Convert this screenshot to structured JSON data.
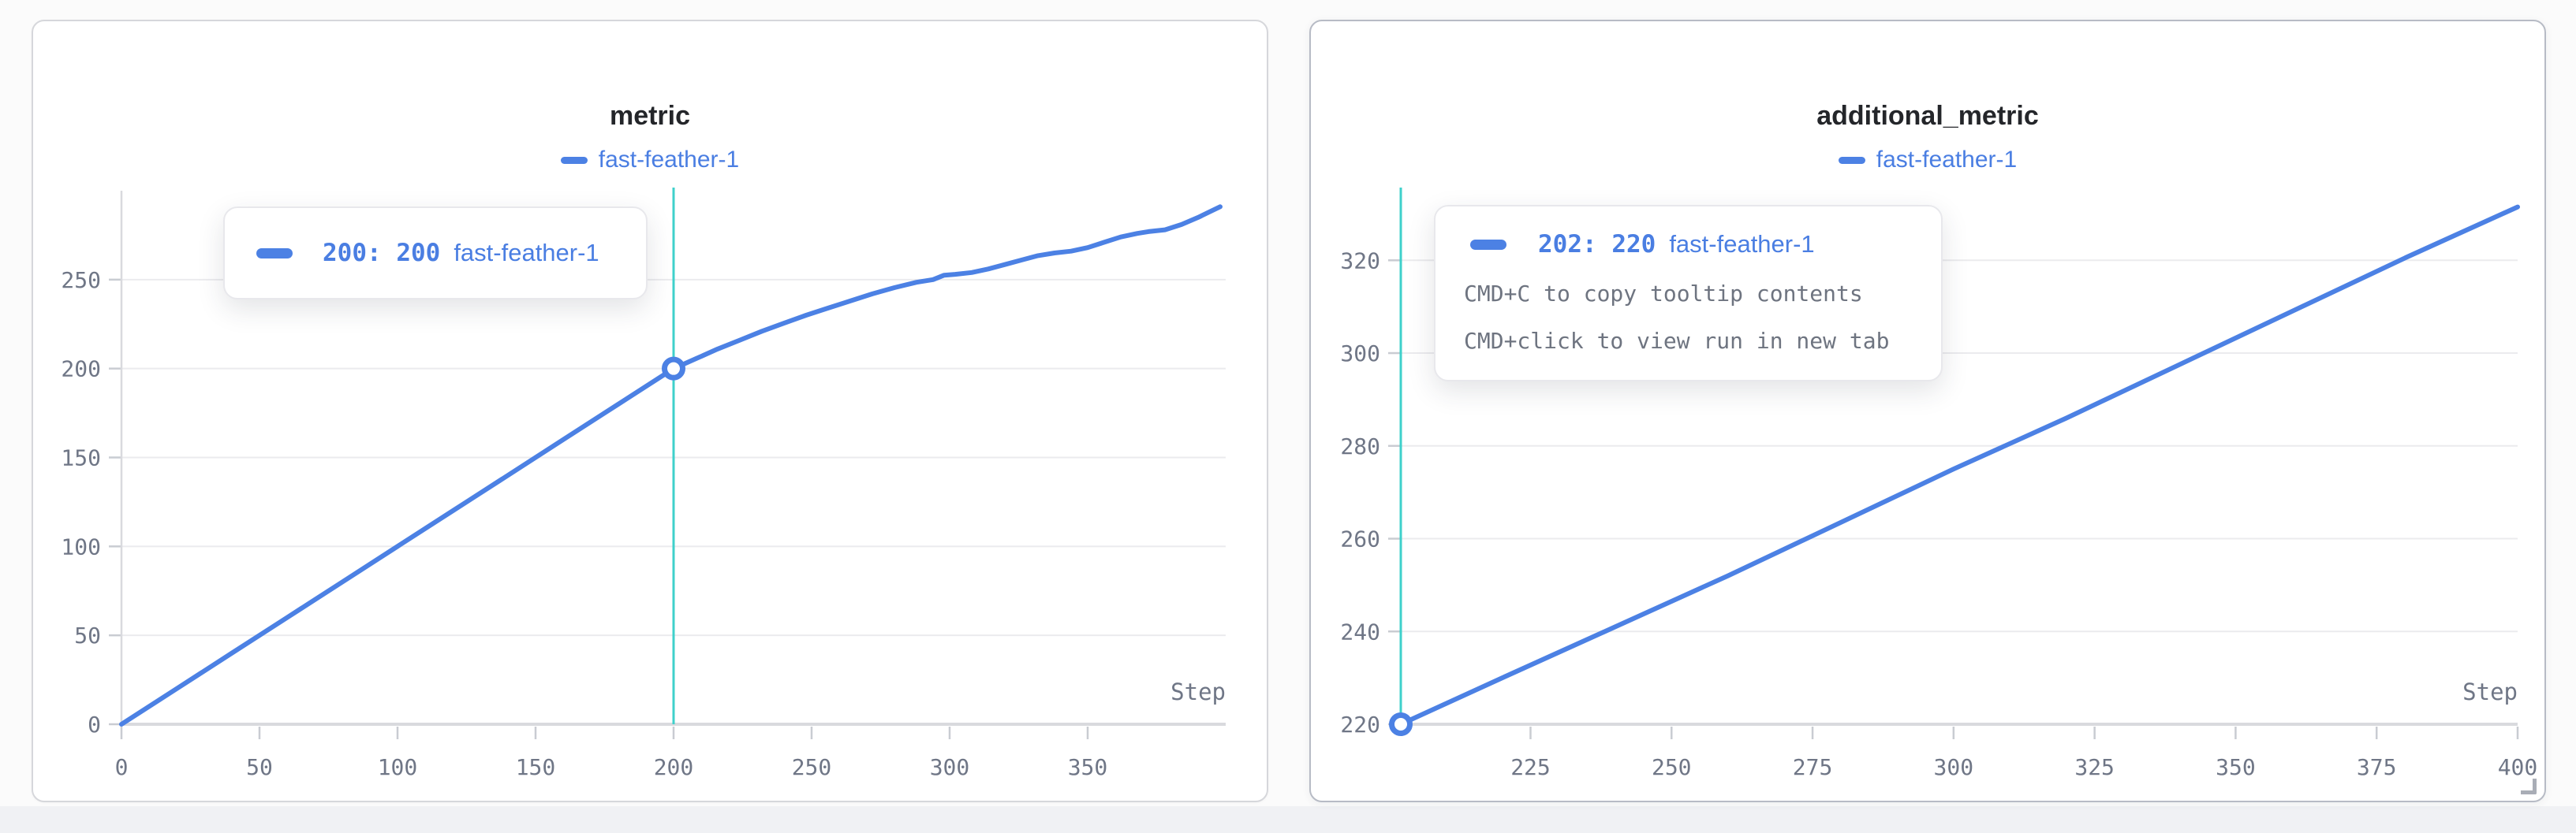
{
  "colors": {
    "series_blue": "#4c81e4",
    "text_blue": "#4a7ee2",
    "crosshair_teal": "#3fd0cb",
    "gridline": "#ebebee",
    "axis_line": "#d9dade",
    "tick_mark": "#c9ccd2",
    "tick_text": "#6f7686",
    "title_text": "#24262a",
    "hint_text": "#6e7480",
    "panel_bg": "#ffffff",
    "page_bg": "#fbfbfb"
  },
  "panels": [
    {
      "title": "metric",
      "legend": [
        {
          "label": "fast-feather-1"
        }
      ],
      "xlabel": "Step",
      "tooltip": {
        "value_text": "200: 200",
        "run": "fast-feather-1",
        "hints": []
      }
    },
    {
      "title": "additional_metric",
      "legend": [
        {
          "label": "fast-feather-1"
        }
      ],
      "xlabel": "Step",
      "tooltip": {
        "value_text": "202: 220",
        "run": "fast-feather-1",
        "hints": [
          "CMD+C to copy tooltip contents",
          "CMD+click to view run in new tab"
        ]
      }
    }
  ],
  "chart_data": [
    {
      "type": "line",
      "title": "metric",
      "xlabel": "Step",
      "ylabel": "",
      "xlim": [
        0,
        400
      ],
      "ylim": [
        0,
        300
      ],
      "xticks": [
        0,
        50,
        100,
        150,
        200,
        250,
        300,
        350
      ],
      "yticks": [
        0,
        50,
        100,
        150,
        200,
        250
      ],
      "grid": "horizontal",
      "legend_position": "top",
      "crosshair_x": 200,
      "marker": [
        200,
        200
      ],
      "series": [
        {
          "name": "fast-feather-1",
          "color": "#4c81e4",
          "points": [
            [
              0,
              0
            ],
            [
              20,
              20
            ],
            [
              40,
              40
            ],
            [
              60,
              60
            ],
            [
              80,
              80
            ],
            [
              100,
              100
            ],
            [
              120,
              120
            ],
            [
              140,
              140
            ],
            [
              160,
              160
            ],
            [
              180,
              180
            ],
            [
              200,
              200
            ],
            [
              208,
              205.5
            ],
            [
              216,
              211
            ],
            [
              224,
              216
            ],
            [
              232,
              221
            ],
            [
              240,
              225.5
            ],
            [
              248,
              230
            ],
            [
              256,
              234
            ],
            [
              264,
              238
            ],
            [
              272,
              242
            ],
            [
              280,
              245.5
            ],
            [
              288,
              248.5
            ],
            [
              294,
              250
            ],
            [
              298,
              252.5
            ],
            [
              302,
              253
            ],
            [
              308,
              254
            ],
            [
              314,
              256
            ],
            [
              320,
              258.5
            ],
            [
              326,
              261
            ],
            [
              332,
              263.5
            ],
            [
              338,
              265
            ],
            [
              344,
              266
            ],
            [
              350,
              268
            ],
            [
              356,
              271
            ],
            [
              362,
              274
            ],
            [
              368,
              276
            ],
            [
              372,
              277
            ],
            [
              378,
              278
            ],
            [
              384,
              281
            ],
            [
              390,
              285
            ],
            [
              394,
              288
            ],
            [
              398,
              291
            ]
          ]
        }
      ]
    },
    {
      "type": "line",
      "title": "additional_metric",
      "xlabel": "Step",
      "ylabel": "",
      "xlim": [
        202,
        400
      ],
      "ylim": [
        220,
        335
      ],
      "xticks": [
        225,
        250,
        275,
        300,
        325,
        350,
        375,
        400
      ],
      "yticks": [
        220,
        240,
        260,
        280,
        300,
        320
      ],
      "grid": "horizontal",
      "legend_position": "top",
      "crosshair_x": 202,
      "marker": [
        202,
        220
      ],
      "series": [
        {
          "name": "fast-feather-1",
          "color": "#4c81e4",
          "points": [
            [
              202,
              220
            ],
            [
              220,
              230
            ],
            [
              240,
              241
            ],
            [
              260,
              252
            ],
            [
              280,
              263.5
            ],
            [
              300,
              275
            ],
            [
              320,
              286
            ],
            [
              340,
              297.5
            ],
            [
              360,
              309
            ],
            [
              380,
              320.5
            ],
            [
              400,
              331.5
            ]
          ]
        }
      ]
    }
  ]
}
